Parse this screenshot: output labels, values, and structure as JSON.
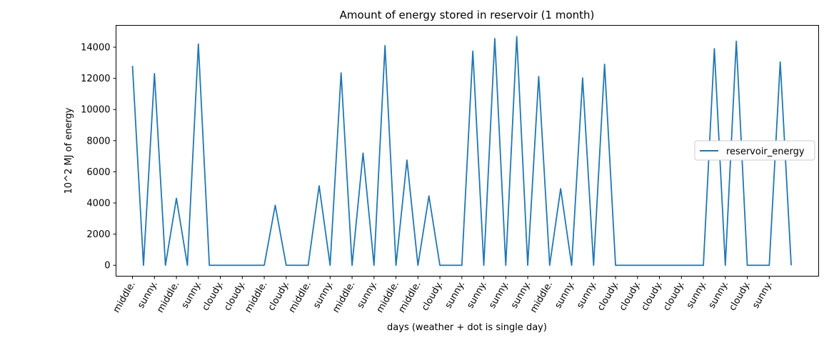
{
  "chart_data": {
    "type": "line",
    "title": "Amount of energy stored in reservoir (1 month)",
    "xlabel": "days (weather + dot is single day)",
    "ylabel": "10^2 MJ of energy",
    "ylim": [
      -700,
      15400
    ],
    "yticks": [
      0,
      2000,
      4000,
      6000,
      8000,
      10000,
      12000,
      14000
    ],
    "ytick_labels": [
      "0",
      "2000",
      "4000",
      "6000",
      "8000",
      "10000",
      "12000",
      "14000"
    ],
    "x_range": [
      -1.5,
      62.5
    ],
    "categories": [
      "middle.",
      "sunny.",
      "middle.",
      "sunny.",
      "cloudy.",
      "cloudy.",
      "middle.",
      "cloudy.",
      "middle.",
      "sunny.",
      "middle.",
      "sunny.",
      "middle.",
      "middle.",
      "cloudy.",
      "sunny.",
      "sunny.",
      "sunny.",
      "sunny.",
      "middle.",
      "sunny.",
      "sunny.",
      "cloudy.",
      "cloudy.",
      "cloudy.",
      "cloudy.",
      "sunny.",
      "sunny.",
      "cloudy.",
      "sunny."
    ],
    "grid": false,
    "legend": {
      "position": "center-right",
      "entries": [
        "reservoir_energy"
      ]
    },
    "series": [
      {
        "name": "reservoir_energy",
        "color": "#1f77b4",
        "x": [
          0,
          1,
          2,
          3,
          4,
          5,
          6,
          7,
          8,
          9,
          10,
          11,
          12,
          13,
          14,
          15,
          16,
          17,
          18,
          19,
          20,
          21,
          22,
          23,
          24,
          25,
          26,
          27,
          28,
          29,
          30,
          31,
          32,
          33,
          34,
          35,
          36,
          37,
          38,
          39,
          40,
          41,
          42,
          43,
          44,
          45,
          46,
          47,
          48,
          49,
          50,
          51,
          52,
          53,
          54,
          55,
          56,
          57,
          58,
          59,
          60
        ],
        "values": [
          12800,
          0,
          12300,
          0,
          4300,
          0,
          14200,
          0,
          0,
          0,
          0,
          0,
          0,
          3850,
          0,
          0,
          0,
          5100,
          0,
          12350,
          0,
          7200,
          0,
          14100,
          0,
          6750,
          0,
          4450,
          0,
          0,
          0,
          13750,
          0,
          14550,
          0,
          14680,
          0,
          12120,
          0,
          4920,
          0,
          12020,
          0,
          12900,
          0,
          0,
          0,
          0,
          0,
          0,
          0,
          0,
          0,
          13900,
          0,
          14380,
          0,
          0,
          0,
          13050,
          0
        ]
      }
    ]
  }
}
